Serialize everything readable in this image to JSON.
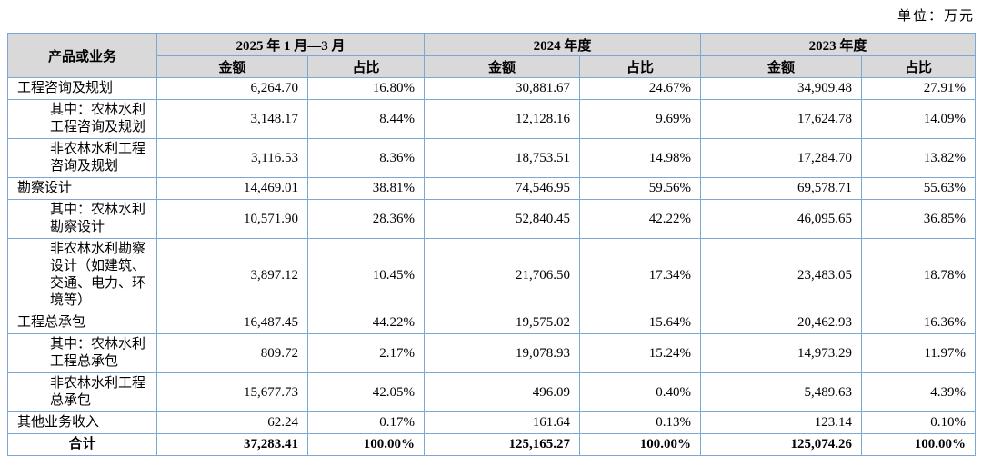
{
  "unit_label": "单位：万元",
  "colors": {
    "table_border": "#7ba7d7",
    "header_bg": "#d9d9d9",
    "page_bg": "#ffffff"
  },
  "table": {
    "product_header": "产品或业务",
    "periods": [
      "2025 年 1 月—3 月",
      "2024 年度",
      "2023 年度"
    ],
    "amount_label": "金额",
    "ratio_label": "占比",
    "rows": [
      {
        "label": "工程咨询及规划",
        "indent": false,
        "total": false,
        "values": [
          "6,264.70",
          "16.80%",
          "30,881.67",
          "24.67%",
          "34,909.48",
          "27.91%"
        ]
      },
      {
        "label": "其中：农林水利工程咨询及规划",
        "indent": true,
        "total": false,
        "values": [
          "3,148.17",
          "8.44%",
          "12,128.16",
          "9.69%",
          "17,624.78",
          "14.09%"
        ]
      },
      {
        "label": "非农林水利工程咨询及规划",
        "indent": true,
        "total": false,
        "values": [
          "3,116.53",
          "8.36%",
          "18,753.51",
          "14.98%",
          "17,284.70",
          "13.82%"
        ]
      },
      {
        "label": "勘察设计",
        "indent": false,
        "total": false,
        "values": [
          "14,469.01",
          "38.81%",
          "74,546.95",
          "59.56%",
          "69,578.71",
          "55.63%"
        ]
      },
      {
        "label": "其中：农林水利勘察设计",
        "indent": true,
        "total": false,
        "values": [
          "10,571.90",
          "28.36%",
          "52,840.45",
          "42.22%",
          "46,095.65",
          "36.85%"
        ]
      },
      {
        "label": "非农林水利勘察设计（如建筑、交通、电力、环境等）",
        "indent": true,
        "total": false,
        "values": [
          "3,897.12",
          "10.45%",
          "21,706.50",
          "17.34%",
          "23,483.05",
          "18.78%"
        ]
      },
      {
        "label": "工程总承包",
        "indent": false,
        "total": false,
        "values": [
          "16,487.45",
          "44.22%",
          "19,575.02",
          "15.64%",
          "20,462.93",
          "16.36%"
        ]
      },
      {
        "label": "其中：农林水利工程总承包",
        "indent": true,
        "total": false,
        "values": [
          "809.72",
          "2.17%",
          "19,078.93",
          "15.24%",
          "14,973.29",
          "11.97%"
        ]
      },
      {
        "label": "非农林水利工程总承包",
        "indent": true,
        "total": false,
        "values": [
          "15,677.73",
          "42.05%",
          "496.09",
          "0.40%",
          "5,489.63",
          "4.39%"
        ]
      },
      {
        "label": "其他业务收入",
        "indent": false,
        "total": false,
        "values": [
          "62.24",
          "0.17%",
          "161.64",
          "0.13%",
          "123.14",
          "0.10%"
        ]
      },
      {
        "label": "合计",
        "indent": false,
        "total": true,
        "values": [
          "37,283.41",
          "100.00%",
          "125,165.27",
          "100.00%",
          "125,074.26",
          "100.00%"
        ]
      }
    ]
  }
}
